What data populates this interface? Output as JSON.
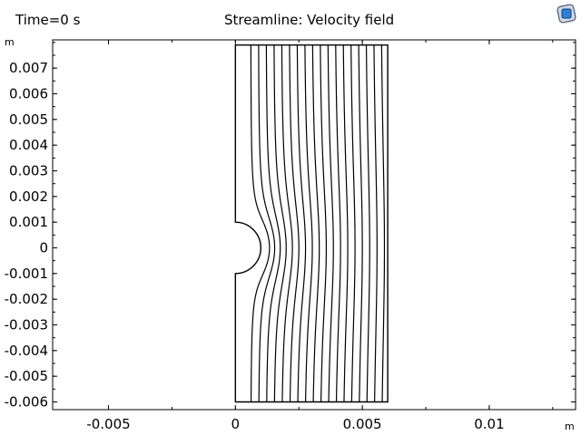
{
  "header": {
    "time_label": "Time=0 s",
    "title": "Streamline: Velocity field"
  },
  "axes": {
    "x_unit": "m",
    "y_unit": "m"
  },
  "logo_icon": "comsol-logo-icon",
  "chart_data": {
    "type": "streamline",
    "title": "Streamline: Velocity field",
    "time": "Time=0 s",
    "xlabel": "m",
    "ylabel": "m",
    "xlim": [
      -0.0072,
      0.0134
    ],
    "ylim": [
      -0.0063,
      0.0081
    ],
    "x_ticks": [
      {
        "value": -0.005,
        "label": "-0.005"
      },
      {
        "value": 0,
        "label": "0"
      },
      {
        "value": 0.005,
        "label": "0.005"
      },
      {
        "value": 0.01,
        "label": "0.01"
      }
    ],
    "y_ticks": [
      {
        "value": 0.007,
        "label": "0.007"
      },
      {
        "value": 0.006,
        "label": "0.006"
      },
      {
        "value": 0.005,
        "label": "0.005"
      },
      {
        "value": 0.004,
        "label": "0.004"
      },
      {
        "value": 0.003,
        "label": "0.003"
      },
      {
        "value": 0.002,
        "label": "0.002"
      },
      {
        "value": 0.001,
        "label": "0.001"
      },
      {
        "value": 0,
        "label": "0"
      },
      {
        "value": -0.001,
        "label": "-0.001"
      },
      {
        "value": -0.002,
        "label": "-0.002"
      },
      {
        "value": -0.003,
        "label": "-0.003"
      },
      {
        "value": -0.004,
        "label": "-0.004"
      },
      {
        "value": -0.005,
        "label": "-0.005"
      },
      {
        "value": -0.006,
        "label": "-0.006"
      }
    ],
    "domain": {
      "x_min": 0,
      "x_max": 0.006,
      "y_min": -0.006,
      "y_max": 0.0079,
      "cylinder_center": [
        0,
        0
      ],
      "cylinder_radius": 0.001
    },
    "streamline_x_positions": [
      0.0006,
      0.0009,
      0.0012,
      0.0015,
      0.0018,
      0.0021,
      0.0024,
      0.0027,
      0.003,
      0.0033,
      0.0036,
      0.0039,
      0.0042,
      0.0045,
      0.0048,
      0.0051,
      0.0054,
      0.0057
    ],
    "grid": false
  }
}
